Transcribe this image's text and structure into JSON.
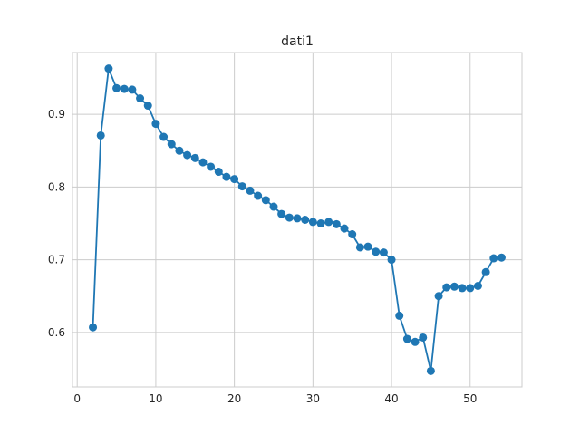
{
  "chart_data": {
    "type": "line",
    "title": "dati1",
    "xlabel": "",
    "ylabel": "",
    "xlim": [
      -0.6,
      56.6
    ],
    "ylim": [
      0.525,
      0.985
    ],
    "xticks": [
      0,
      10,
      20,
      30,
      40,
      50
    ],
    "yticks": [
      0.6,
      0.7,
      0.8,
      0.9
    ],
    "ytick_labels": [
      "0.6",
      "0.7",
      "0.8",
      "0.9"
    ],
    "grid": true,
    "legend": "none",
    "colors": {
      "series": "#1f77b4",
      "grid": "#cccccc",
      "axes": "#cccccc",
      "text": "#262626"
    },
    "series": [
      {
        "x": [
          2,
          3,
          4,
          5,
          6,
          7,
          8,
          9,
          10,
          11,
          12,
          13,
          14,
          15,
          16,
          17,
          18,
          19,
          20,
          21,
          22,
          23,
          24,
          25,
          26,
          27,
          28,
          29,
          30,
          31,
          32,
          33,
          34,
          35,
          36,
          37,
          38,
          39,
          40,
          41,
          42,
          43,
          44,
          45,
          46,
          47,
          48,
          49,
          50,
          51,
          52,
          53,
          54
        ],
        "y": [
          0.607,
          0.871,
          0.963,
          0.936,
          0.935,
          0.934,
          0.922,
          0.912,
          0.887,
          0.869,
          0.859,
          0.85,
          0.844,
          0.84,
          0.834,
          0.828,
          0.821,
          0.814,
          0.811,
          0.801,
          0.795,
          0.788,
          0.782,
          0.773,
          0.763,
          0.758,
          0.757,
          0.755,
          0.752,
          0.75,
          0.752,
          0.749,
          0.743,
          0.735,
          0.717,
          0.718,
          0.711,
          0.71,
          0.7,
          0.623,
          0.591,
          0.587,
          0.593,
          0.547,
          0.65,
          0.662,
          0.663,
          0.661,
          0.661,
          0.664,
          0.683,
          0.702,
          0.703
        ]
      }
    ]
  }
}
